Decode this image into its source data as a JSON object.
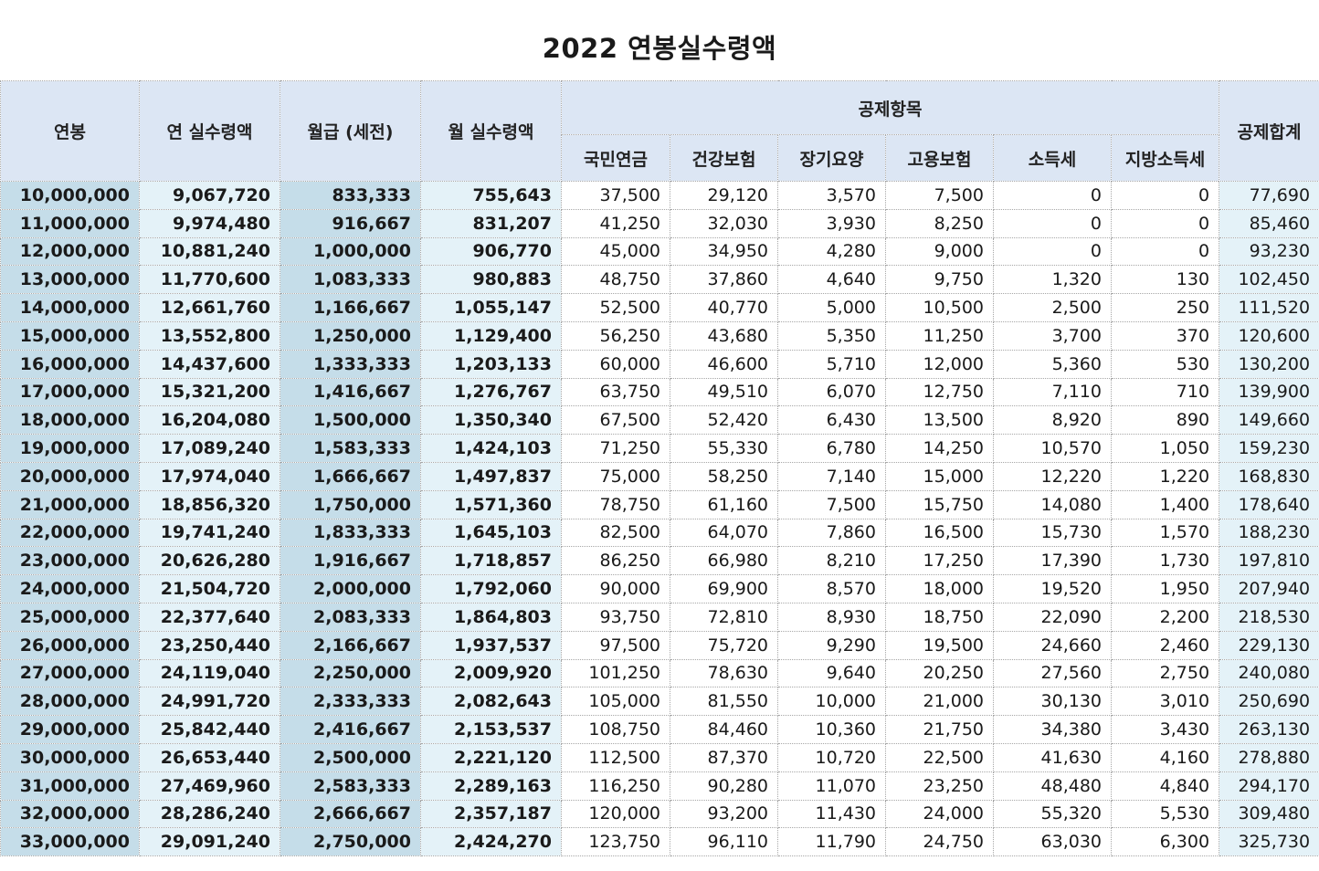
{
  "title": "2022 연봉실수령액",
  "headers": {
    "annual_salary": "연봉",
    "annual_net": "연 실수령액",
    "monthly_gross": "월급 (세전)",
    "monthly_net": "월 실수령액",
    "deductions_group": "공제항목",
    "national_pension": "국민연금",
    "health_insurance": "건강보험",
    "long_term_care": "장기요양",
    "employment_insurance": "고용보험",
    "income_tax": "소득세",
    "local_income_tax": "지방소득세",
    "total_deduction": "공제합계"
  },
  "rows": [
    [
      "10,000,000",
      "9,067,720",
      "833,333",
      "755,643",
      "37,500",
      "29,120",
      "3,570",
      "7,500",
      "0",
      "0",
      "77,690"
    ],
    [
      "11,000,000",
      "9,974,480",
      "916,667",
      "831,207",
      "41,250",
      "32,030",
      "3,930",
      "8,250",
      "0",
      "0",
      "85,460"
    ],
    [
      "12,000,000",
      "10,881,240",
      "1,000,000",
      "906,770",
      "45,000",
      "34,950",
      "4,280",
      "9,000",
      "0",
      "0",
      "93,230"
    ],
    [
      "13,000,000",
      "11,770,600",
      "1,083,333",
      "980,883",
      "48,750",
      "37,860",
      "4,640",
      "9,750",
      "1,320",
      "130",
      "102,450"
    ],
    [
      "14,000,000",
      "12,661,760",
      "1,166,667",
      "1,055,147",
      "52,500",
      "40,770",
      "5,000",
      "10,500",
      "2,500",
      "250",
      "111,520"
    ],
    [
      "15,000,000",
      "13,552,800",
      "1,250,000",
      "1,129,400",
      "56,250",
      "43,680",
      "5,350",
      "11,250",
      "3,700",
      "370",
      "120,600"
    ],
    [
      "16,000,000",
      "14,437,600",
      "1,333,333",
      "1,203,133",
      "60,000",
      "46,600",
      "5,710",
      "12,000",
      "5,360",
      "530",
      "130,200"
    ],
    [
      "17,000,000",
      "15,321,200",
      "1,416,667",
      "1,276,767",
      "63,750",
      "49,510",
      "6,070",
      "12,750",
      "7,110",
      "710",
      "139,900"
    ],
    [
      "18,000,000",
      "16,204,080",
      "1,500,000",
      "1,350,340",
      "67,500",
      "52,420",
      "6,430",
      "13,500",
      "8,920",
      "890",
      "149,660"
    ],
    [
      "19,000,000",
      "17,089,240",
      "1,583,333",
      "1,424,103",
      "71,250",
      "55,330",
      "6,780",
      "14,250",
      "10,570",
      "1,050",
      "159,230"
    ],
    [
      "20,000,000",
      "17,974,040",
      "1,666,667",
      "1,497,837",
      "75,000",
      "58,250",
      "7,140",
      "15,000",
      "12,220",
      "1,220",
      "168,830"
    ],
    [
      "21,000,000",
      "18,856,320",
      "1,750,000",
      "1,571,360",
      "78,750",
      "61,160",
      "7,500",
      "15,750",
      "14,080",
      "1,400",
      "178,640"
    ],
    [
      "22,000,000",
      "19,741,240",
      "1,833,333",
      "1,645,103",
      "82,500",
      "64,070",
      "7,860",
      "16,500",
      "15,730",
      "1,570",
      "188,230"
    ],
    [
      "23,000,000",
      "20,626,280",
      "1,916,667",
      "1,718,857",
      "86,250",
      "66,980",
      "8,210",
      "17,250",
      "17,390",
      "1,730",
      "197,810"
    ],
    [
      "24,000,000",
      "21,504,720",
      "2,000,000",
      "1,792,060",
      "90,000",
      "69,900",
      "8,570",
      "18,000",
      "19,520",
      "1,950",
      "207,940"
    ],
    [
      "25,000,000",
      "22,377,640",
      "2,083,333",
      "1,864,803",
      "93,750",
      "72,810",
      "8,930",
      "18,750",
      "22,090",
      "2,200",
      "218,530"
    ],
    [
      "26,000,000",
      "23,250,440",
      "2,166,667",
      "1,937,537",
      "97,500",
      "75,720",
      "9,290",
      "19,500",
      "24,660",
      "2,460",
      "229,130"
    ],
    [
      "27,000,000",
      "24,119,040",
      "2,250,000",
      "2,009,920",
      "101,250",
      "78,630",
      "9,640",
      "20,250",
      "27,560",
      "2,750",
      "240,080"
    ],
    [
      "28,000,000",
      "24,991,720",
      "2,333,333",
      "2,082,643",
      "105,000",
      "81,550",
      "10,000",
      "21,000",
      "30,130",
      "3,010",
      "250,690"
    ],
    [
      "29,000,000",
      "25,842,440",
      "2,416,667",
      "2,153,537",
      "108,750",
      "84,460",
      "10,360",
      "21,750",
      "34,380",
      "3,430",
      "263,130"
    ],
    [
      "30,000,000",
      "26,653,440",
      "2,500,000",
      "2,221,120",
      "112,500",
      "87,370",
      "10,720",
      "22,500",
      "41,630",
      "4,160",
      "278,880"
    ],
    [
      "31,000,000",
      "27,469,960",
      "2,583,333",
      "2,289,163",
      "116,250",
      "90,280",
      "11,070",
      "23,250",
      "48,480",
      "4,840",
      "294,170"
    ],
    [
      "32,000,000",
      "28,286,240",
      "2,666,667",
      "2,357,187",
      "120,000",
      "93,200",
      "11,430",
      "24,000",
      "55,320",
      "5,530",
      "309,480"
    ],
    [
      "33,000,000",
      "29,091,240",
      "2,750,000",
      "2,424,270",
      "123,750",
      "96,110",
      "11,790",
      "24,750",
      "63,030",
      "6,300",
      "325,730"
    ]
  ]
}
